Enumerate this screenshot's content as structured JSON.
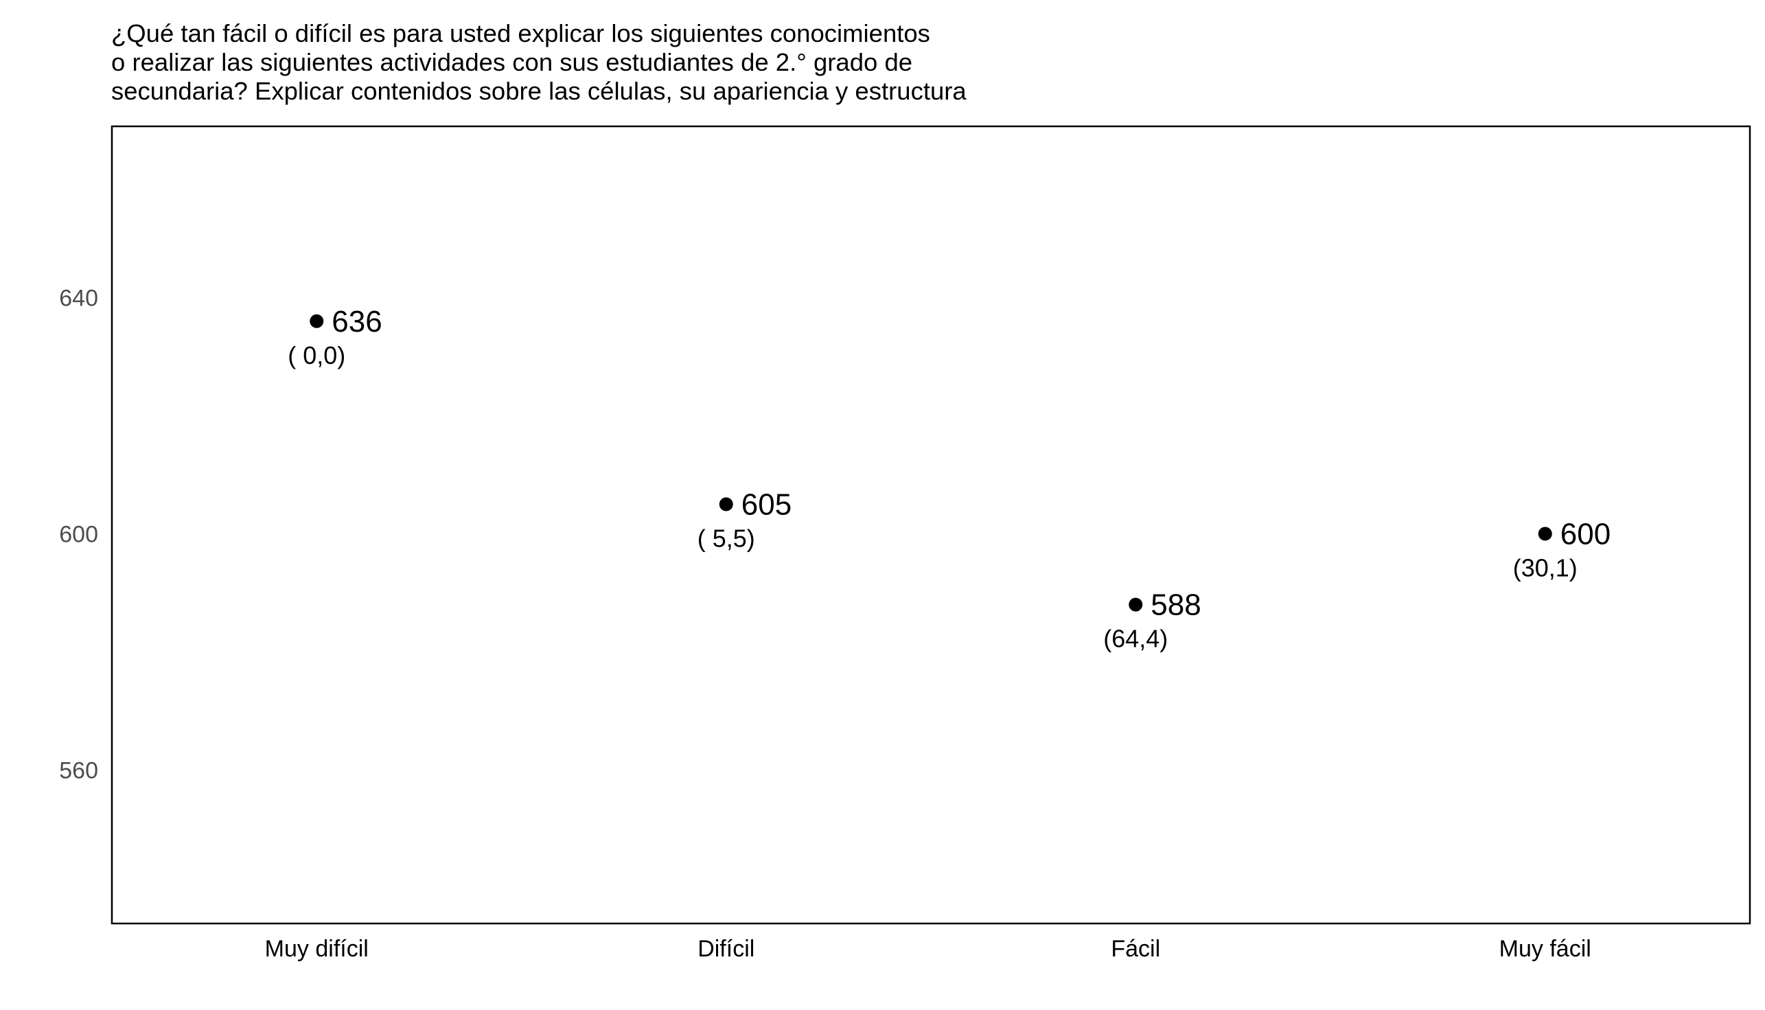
{
  "chart_data": {
    "type": "scatter",
    "title_lines": [
      "¿Qué tan fácil o difícil es para usted explicar los siguientes conocimientos",
      "o realizar las siguientes actividades con sus estudiantes de 2.° grado de",
      "secundaria? Explicar contenidos sobre las células, su apariencia y estructura"
    ],
    "categories": [
      "Muy difícil",
      "Difícil",
      "Fácil",
      "Muy fácil"
    ],
    "values": [
      636,
      605,
      588,
      600
    ],
    "value_labels": [
      "636",
      "605",
      "588",
      "600"
    ],
    "percent_labels": [
      "( 0,0)",
      "( 5,5)",
      "(64,4)",
      "(30,1)"
    ],
    "y_ticks": [
      560,
      600,
      640
    ],
    "ylim": [
      534,
      669
    ],
    "xlabel": "",
    "ylabel": "",
    "grid": false,
    "legend": "none",
    "colors": {
      "point": "#000000",
      "axis_text": "#4d4d4d",
      "frame": "#000000"
    }
  }
}
